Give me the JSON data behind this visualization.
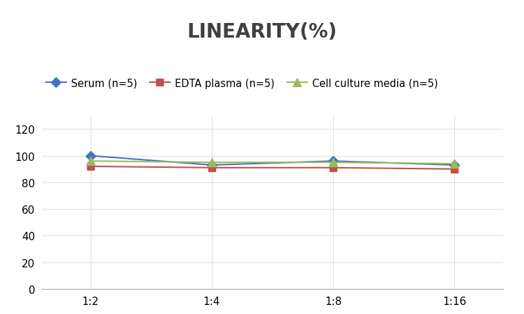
{
  "title": "LINEARITY(%)",
  "x_labels": [
    "1:2",
    "1:4",
    "1:8",
    "1:16"
  ],
  "x_positions": [
    0,
    1,
    2,
    3
  ],
  "series": [
    {
      "label": "Serum (n=5)",
      "values": [
        100,
        93,
        96,
        93
      ],
      "color": "#4472C4",
      "marker": "D",
      "linewidth": 1.5,
      "markersize": 7
    },
    {
      "label": "EDTA plasma (n=5)",
      "values": [
        92,
        91,
        91,
        90
      ],
      "color": "#C0504D",
      "marker": "s",
      "linewidth": 1.5,
      "markersize": 7
    },
    {
      "label": "Cell culture media (n=5)",
      "values": [
        96,
        95,
        95,
        94
      ],
      "color": "#9BBB59",
      "marker": "^",
      "linewidth": 1.5,
      "markersize": 8
    }
  ],
  "ylim": [
    0,
    130
  ],
  "yticks": [
    0,
    20,
    40,
    60,
    80,
    100,
    120
  ],
  "grid_color": "#e0e0e0",
  "background_color": "#ffffff",
  "title_fontsize": 20,
  "legend_fontsize": 10.5,
  "tick_fontsize": 11
}
